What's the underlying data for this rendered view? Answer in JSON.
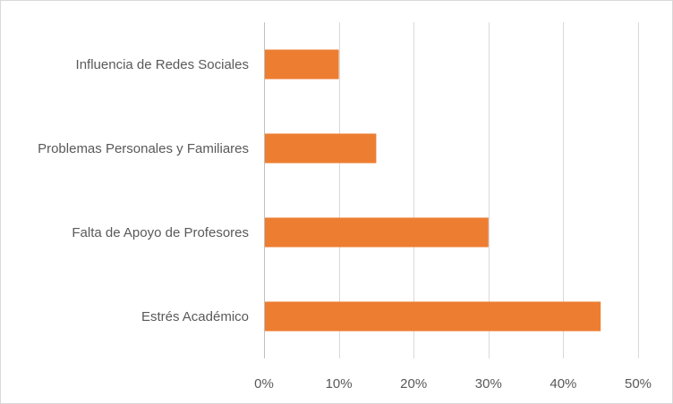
{
  "chart_data": {
    "type": "bar",
    "orientation": "horizontal",
    "categories": [
      "Influencia de Redes Sociales",
      "Problemas Personales y Familiares",
      "Falta de Apoyo de Profesores",
      "Estrés Académico"
    ],
    "values": [
      0.1,
      0.15,
      0.3,
      0.45
    ],
    "value_unit": "fraction",
    "xlim": [
      0,
      0.5
    ],
    "x_ticks": [
      0,
      0.1,
      0.2,
      0.3,
      0.4,
      0.5
    ],
    "x_tick_labels": [
      "0%",
      "10%",
      "20%",
      "30%",
      "40%",
      "50%"
    ],
    "title": "",
    "xlabel": "",
    "ylabel": "",
    "grid": "vertical",
    "legend": "none",
    "bar_color": "#ed7d31",
    "gridline_color": "#d9d9d9",
    "axis_line_color": "#bfbfbf",
    "text_color": "#595959"
  }
}
